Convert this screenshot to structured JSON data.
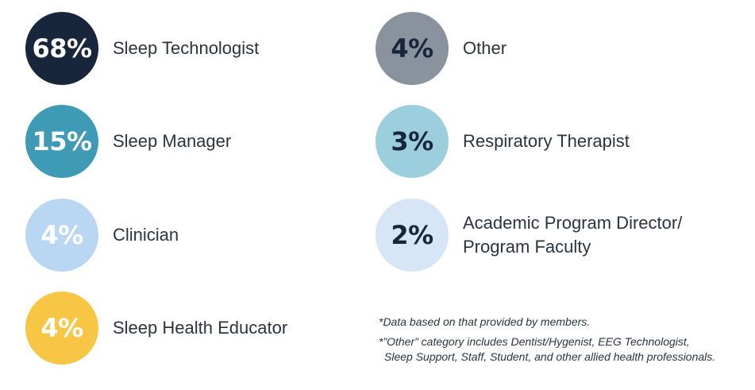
{
  "chart_data": {
    "type": "table",
    "categories": [
      "Sleep Technologist",
      "Sleep Manager",
      "Clinician",
      "Sleep Health Educator",
      "Other",
      "Respiratory Therapist",
      "Academic Program Director/ Program Faculty"
    ],
    "values": [
      68,
      15,
      4,
      4,
      4,
      3,
      2
    ],
    "value_labels": [
      "68%",
      "15%",
      "4%",
      "4%",
      "4%",
      "3%",
      "2%"
    ],
    "colors": [
      "#17263a",
      "#3f9bb5",
      "#b9d6f2",
      "#f6c644",
      "#8a929d",
      "#9ccfdd",
      "#d6e6f6"
    ],
    "text_colors": [
      "#ffffff",
      "#ffffff",
      "#ffffff",
      "#ffffff",
      "#17263a",
      "#17263a",
      "#17263a"
    ]
  },
  "notes": {
    "note1": "*Data based on that provided by members.",
    "note2_line1": "*”Other” category includes Dentist/Hygenist, EEG Technologist,",
    "note2_line2": "Sleep Support, Staff, Student, and other allied health professionals."
  }
}
